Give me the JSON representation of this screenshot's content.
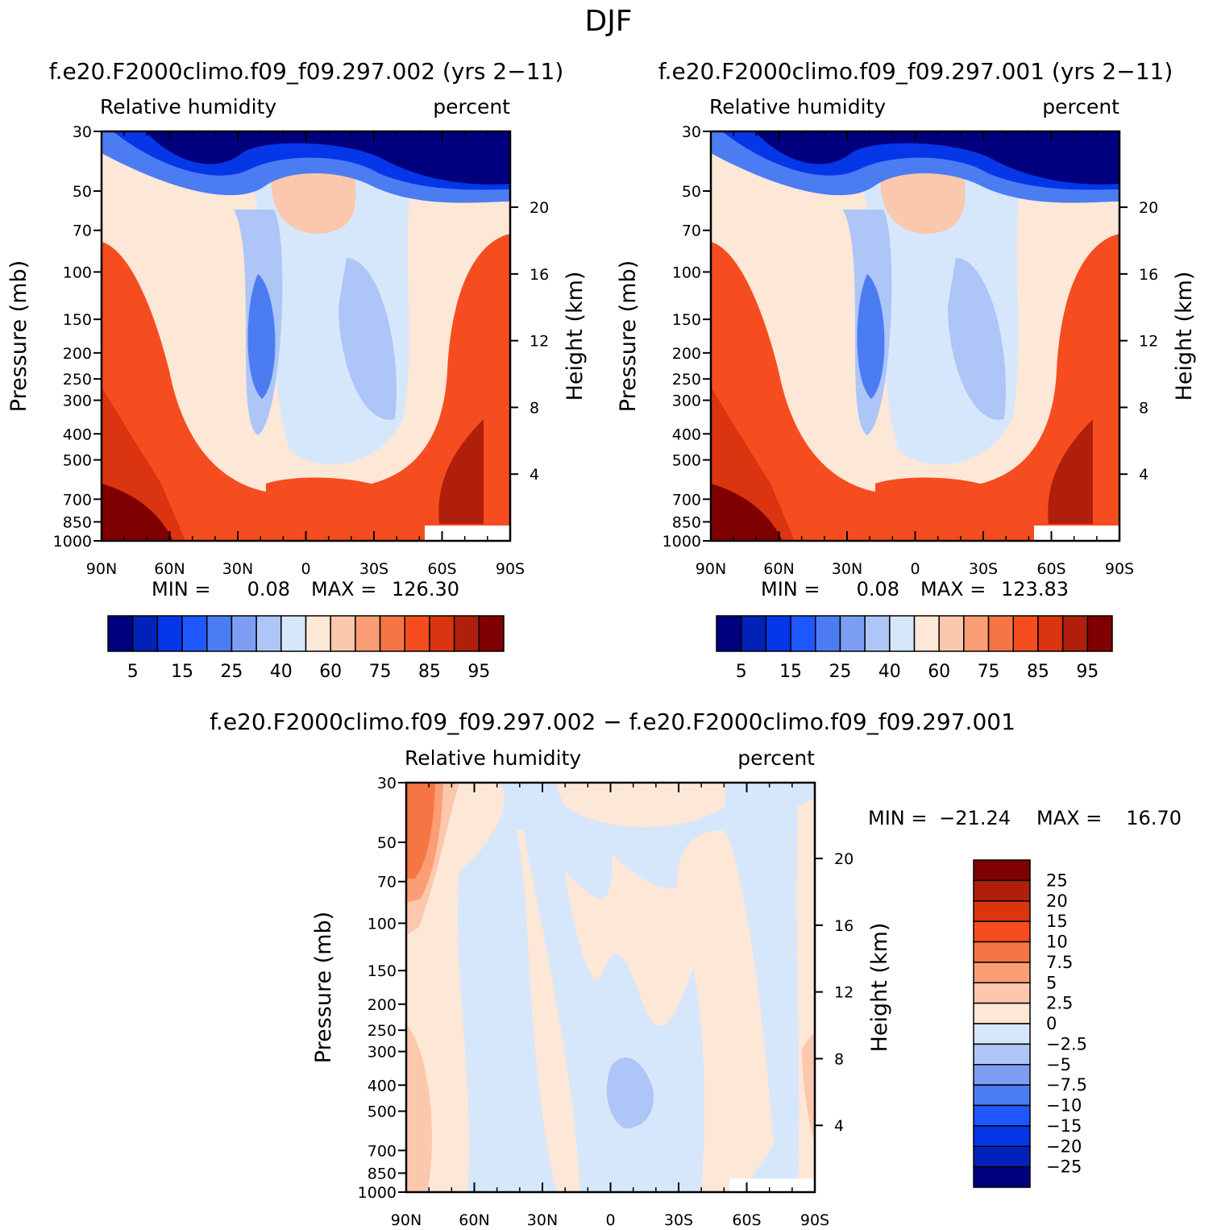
{
  "title": "DJF",
  "colors": {
    "abs_palette": [
      "#00007f",
      "#0022b8",
      "#0537e8",
      "#1f57ff",
      "#4c7cf2",
      "#7c9ef2",
      "#adc5f7",
      "#d7e7fb",
      "#fde7d7",
      "#fbc7ad",
      "#fb9d75",
      "#f67545",
      "#f54d1f",
      "#db3410",
      "#b01f0c",
      "#7e0000"
    ],
    "diff_palette": [
      "#7e0000",
      "#b01f0c",
      "#db3410",
      "#f54d1f",
      "#f67545",
      "#fb9d75",
      "#fbc7ad",
      "#fde7d7",
      "#d7e7fb",
      "#adc5f7",
      "#7c9ef2",
      "#4c7cf2",
      "#1f57ff",
      "#0537e8",
      "#0022b8",
      "#00007f"
    ]
  },
  "chart_data": [
    {
      "type": "heatmap",
      "name": "case-002",
      "title": "f.e20.F2000climo.f09_f09.297.002 (yrs 2-11)",
      "left_label": "Relative humidity",
      "right_label": "percent",
      "ylabel": "Pressure (mb)",
      "y2label": "Height (km)",
      "x_ticks": [
        "90N",
        "60N",
        "30N",
        "0",
        "30S",
        "60S",
        "90S"
      ],
      "y_ticks": [
        30,
        50,
        70,
        100,
        150,
        200,
        250,
        300,
        400,
        500,
        700,
        850,
        1000
      ],
      "height_ticks": [
        20,
        16,
        12,
        8,
        4
      ],
      "min_label": "MIN =",
      "min_value": "0.08",
      "max_label": "MAX =",
      "max_value": "126.30",
      "colorbar_labels": [
        "5",
        "15",
        "25",
        "40",
        "60",
        "75",
        "85",
        "95"
      ],
      "levels": [
        5,
        10,
        15,
        20,
        25,
        30,
        40,
        50,
        60,
        70,
        75,
        80,
        85,
        90,
        95
      ]
    },
    {
      "type": "heatmap",
      "name": "case-001",
      "title": "f.e20.F2000climo.f09_f09.297.001 (yrs 2-11)",
      "left_label": "Relative humidity",
      "right_label": "percent",
      "ylabel": "Pressure (mb)",
      "y2label": "Height (km)",
      "x_ticks": [
        "90N",
        "60N",
        "30N",
        "0",
        "30S",
        "60S",
        "90S"
      ],
      "y_ticks": [
        30,
        50,
        70,
        100,
        150,
        200,
        250,
        300,
        400,
        500,
        700,
        850,
        1000
      ],
      "height_ticks": [
        20,
        16,
        12,
        8,
        4
      ],
      "min_label": "MIN =",
      "min_value": "0.08",
      "max_label": "MAX =",
      "max_value": "123.83",
      "colorbar_labels": [
        "5",
        "15",
        "25",
        "40",
        "60",
        "75",
        "85",
        "95"
      ],
      "levels": [
        5,
        10,
        15,
        20,
        25,
        30,
        40,
        50,
        60,
        70,
        75,
        80,
        85,
        90,
        95
      ]
    },
    {
      "type": "heatmap",
      "name": "difference",
      "title": "f.e20.F2000climo.f09_f09.297.002 - f.e20.F2000climo.f09_f09.297.001",
      "left_label": "Relative humidity",
      "right_label": "percent",
      "ylabel": "Pressure (mb)",
      "y2label": "Height (km)",
      "x_ticks": [
        "90N",
        "60N",
        "30N",
        "0",
        "30S",
        "60S",
        "90S"
      ],
      "y_ticks": [
        30,
        50,
        70,
        100,
        150,
        200,
        250,
        300,
        400,
        500,
        700,
        850,
        1000
      ],
      "height_ticks": [
        20,
        16,
        12,
        8,
        4
      ],
      "min_label": "MIN =",
      "min_value": "-21.24",
      "max_label": "MAX =",
      "max_value": "16.70",
      "colorbar_labels": [
        "25",
        "20",
        "15",
        "10",
        "7.5",
        "5",
        "2.5",
        "0",
        "-2.5",
        "-5",
        "-7.5",
        "-10",
        "-15",
        "-20",
        "-25"
      ],
      "levels": [
        25,
        20,
        15,
        10,
        7.5,
        5,
        2.5,
        0,
        -2.5,
        -5,
        -7.5,
        -10,
        -15,
        -20,
        -25
      ]
    }
  ]
}
